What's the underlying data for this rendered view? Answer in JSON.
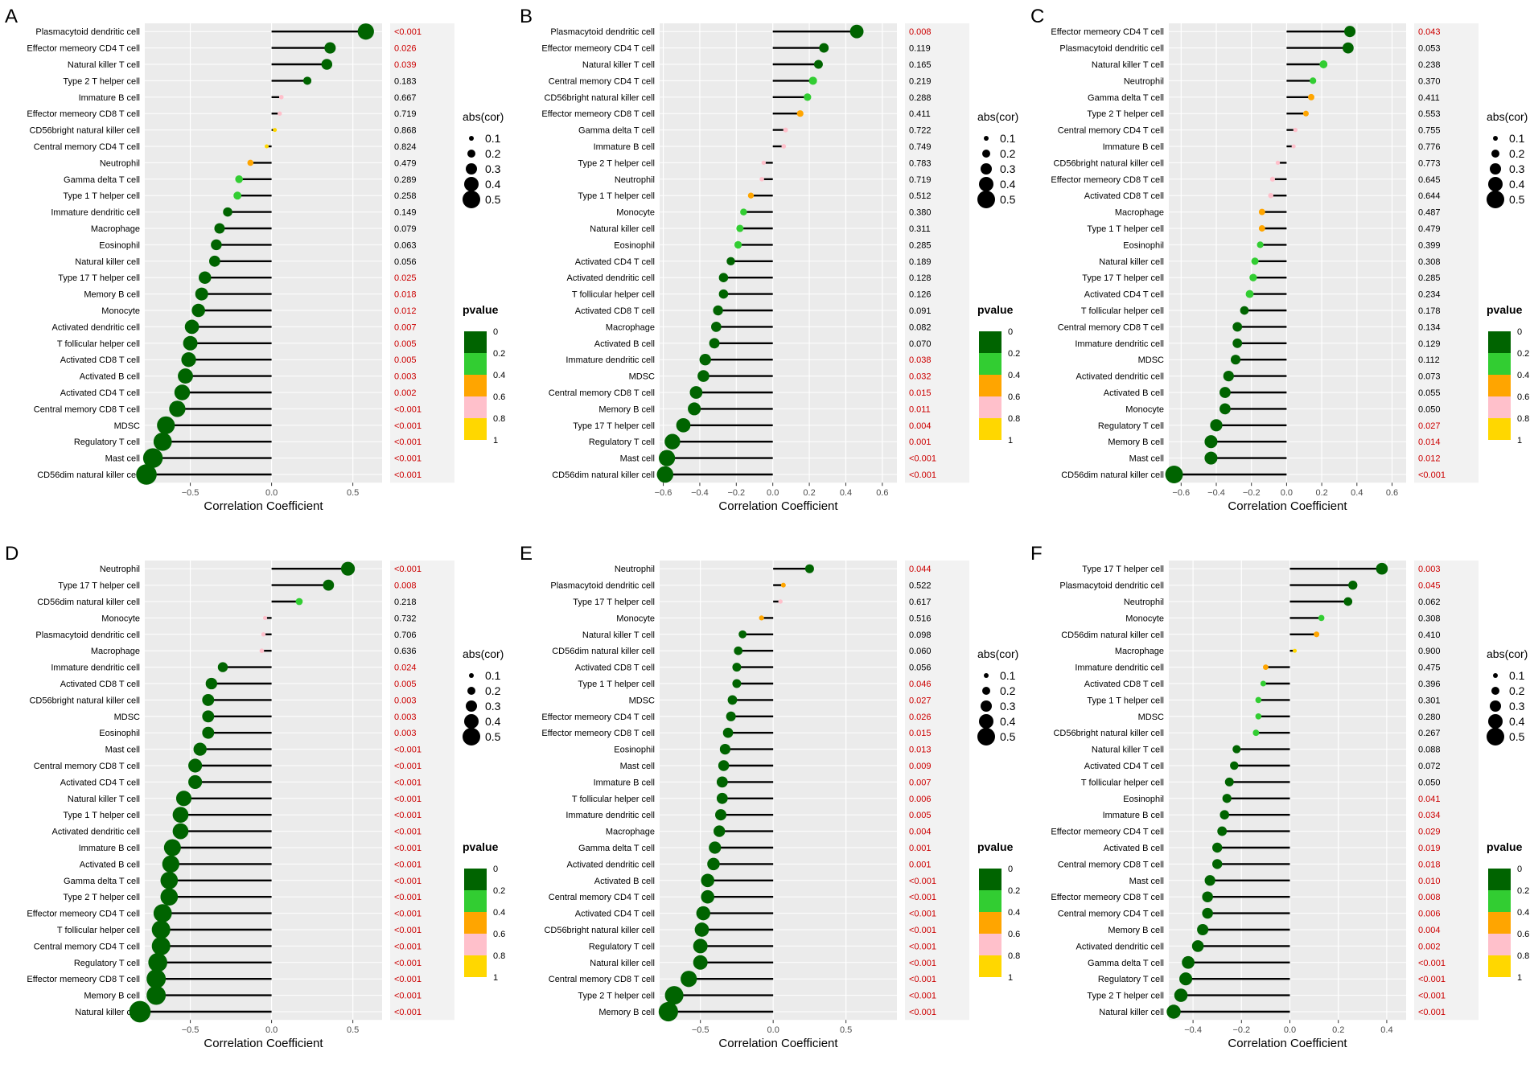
{
  "figure": {
    "xlabel": "Correlation Coefficient",
    "size_legend": {
      "title": "abs(cor)",
      "levels": [
        "0.1",
        "0.2",
        "0.3",
        "0.4",
        "0.5"
      ]
    },
    "p_legend": {
      "title": "pvalue",
      "ticks": [
        "0",
        "0.2",
        "0.4",
        "0.6",
        "0.8",
        "1"
      ]
    },
    "colors": {
      "p0_02": "#006400",
      "p02_04": "#32CD32",
      "p04_06": "#FFA500",
      "p06_08": "#FFC0CB",
      "p08_1": "#FFD700",
      "sig_text": "#cc0000",
      "nonsig_text": "#000000",
      "stem": "#000000",
      "panel_bg": "#ebebeb"
    }
  },
  "chart_data": [
    {
      "panel": "A",
      "type": "lollipop",
      "xlim": [
        -0.78,
        0.68
      ],
      "ticks": [
        -0.5,
        0,
        0.5
      ],
      "tick_labels": [
        "−0.5",
        "0.0",
        "0.5"
      ],
      "cells": [
        "Plasmacytoid dendritic cell",
        "Effector memeory CD4 T cell",
        "Natural killer T cell",
        "Type 2 T helper cell",
        "Immature  B cell",
        "Effector memeory CD8 T cell",
        "CD56bright natural killer cell",
        "Central memory CD4 T cell",
        "Neutrophil",
        "Gamma delta T cell",
        "Type 1 T helper cell",
        "Immature dendritic cell",
        "Macrophage",
        "Eosinophil",
        "Natural killer cell",
        "Type 17 T helper cell",
        "Memory B cell",
        "Monocyte",
        "Activated dendritic cell",
        "T follicular helper cell",
        "Activated CD8 T cell",
        "Activated B cell",
        "Activated CD4 T cell",
        "Central memory CD8 T cell",
        "MDSC",
        "Regulatory T cell",
        "Mast cell",
        "CD56dim natural killer cell"
      ],
      "cor": [
        0.58,
        0.36,
        0.34,
        0.22,
        0.06,
        0.05,
        0.02,
        -0.03,
        -0.13,
        -0.2,
        -0.21,
        -0.27,
        -0.32,
        -0.34,
        -0.35,
        -0.41,
        -0.43,
        -0.45,
        -0.49,
        -0.5,
        -0.51,
        -0.53,
        -0.55,
        -0.58,
        -0.65,
        -0.67,
        -0.73,
        -0.77
      ],
      "pvalue": [
        "<0.001",
        "0.026",
        "0.039",
        "0.183",
        "0.667",
        "0.719",
        "0.868",
        "0.824",
        "0.479",
        "0.289",
        "0.258",
        "0.149",
        "0.079",
        "0.063",
        "0.056",
        "0.025",
        "0.018",
        "0.012",
        "0.007",
        "0.005",
        "0.005",
        "0.003",
        "0.002",
        "<0.001",
        "<0.001",
        "<0.001",
        "<0.001",
        "<0.001"
      ]
    },
    {
      "panel": "B",
      "type": "lollipop",
      "xlim": [
        -0.62,
        0.68
      ],
      "ticks": [
        -0.6,
        -0.4,
        -0.2,
        0,
        0.2,
        0.4,
        0.6
      ],
      "tick_labels": [
        "−0.6",
        "−0.4",
        "−0.2",
        "0.0",
        "0.2",
        "0.4",
        "0.6"
      ],
      "cells": [
        "Plasmacytoid dendritic cell",
        "Effector memeory CD4 T cell",
        "Natural killer T cell",
        "Central memory CD4 T cell",
        "CD56bright natural killer cell",
        "Effector memeory CD8 T cell",
        "Gamma delta T cell",
        "Immature  B cell",
        "Type 2 T helper cell",
        "Neutrophil",
        "Type 1 T helper cell",
        "Monocyte",
        "Natural killer cell",
        "Eosinophil",
        "Activated CD4 T cell",
        "Activated dendritic cell",
        "T follicular helper cell",
        "Activated CD8 T cell",
        "Macrophage",
        "Activated B cell",
        "Immature dendritic cell",
        "MDSC",
        "Central memory CD8 T cell",
        "Memory B cell",
        "Type 17 T helper cell",
        "Regulatory T cell",
        "Mast cell",
        "CD56dim natural killer cell"
      ],
      "cor": [
        0.46,
        0.28,
        0.25,
        0.22,
        0.19,
        0.15,
        0.07,
        0.06,
        -0.05,
        -0.06,
        -0.12,
        -0.16,
        -0.18,
        -0.19,
        -0.23,
        -0.27,
        -0.27,
        -0.3,
        -0.31,
        -0.32,
        -0.37,
        -0.38,
        -0.42,
        -0.43,
        -0.49,
        -0.55,
        -0.58,
        -0.59
      ],
      "pvalue": [
        "0.008",
        "0.119",
        "0.165",
        "0.219",
        "0.288",
        "0.411",
        "0.722",
        "0.749",
        "0.783",
        "0.719",
        "0.512",
        "0.380",
        "0.311",
        "0.285",
        "0.189",
        "0.128",
        "0.126",
        "0.091",
        "0.082",
        "0.070",
        "0.038",
        "0.032",
        "0.015",
        "0.011",
        "0.004",
        "0.001",
        "<0.001",
        "<0.001"
      ]
    },
    {
      "panel": "C",
      "type": "lollipop",
      "xlim": [
        -0.67,
        0.68
      ],
      "ticks": [
        -0.6,
        -0.4,
        -0.2,
        0,
        0.2,
        0.4,
        0.6
      ],
      "tick_labels": [
        "−0.6",
        "−0.4",
        "−0.2",
        "0.0",
        "0.2",
        "0.4",
        "0.6"
      ],
      "cells": [
        "Effector memeory CD4 T cell",
        "Plasmacytoid dendritic cell",
        "Natural killer T cell",
        "Neutrophil",
        "Gamma delta T cell",
        "Type 2 T helper cell",
        "Central memory CD4 T cell",
        "Immature  B cell",
        "CD56bright natural killer cell",
        "Effector memeory CD8 T cell",
        "Activated CD8 T cell",
        "Macrophage",
        "Type 1 T helper cell",
        "Eosinophil",
        "Natural killer cell",
        "Type 17 T helper cell",
        "Activated CD4 T cell",
        "T follicular helper cell",
        "Central memory CD8 T cell",
        "Immature dendritic cell",
        "MDSC",
        "Activated dendritic cell",
        "Activated B cell",
        "Monocyte",
        "Regulatory T cell",
        "Memory B cell",
        "Mast cell",
        "CD56dim natural killer cell"
      ],
      "cor": [
        0.36,
        0.35,
        0.21,
        0.15,
        0.14,
        0.11,
        0.05,
        0.04,
        -0.05,
        -0.08,
        -0.09,
        -0.14,
        -0.14,
        -0.15,
        -0.18,
        -0.19,
        -0.21,
        -0.24,
        -0.28,
        -0.28,
        -0.29,
        -0.33,
        -0.35,
        -0.35,
        -0.4,
        -0.43,
        -0.43,
        -0.64
      ],
      "pvalue": [
        "0.043",
        "0.053",
        "0.238",
        "0.370",
        "0.411",
        "0.553",
        "0.755",
        "0.776",
        "0.773",
        "0.645",
        "0.644",
        "0.487",
        "0.479",
        "0.399",
        "0.308",
        "0.285",
        "0.234",
        "0.178",
        "0.134",
        "0.129",
        "0.112",
        "0.073",
        "0.055",
        "0.050",
        "0.027",
        "0.014",
        "0.012",
        "<0.001"
      ]
    },
    {
      "panel": "D",
      "type": "lollipop",
      "xlim": [
        -0.78,
        0.68
      ],
      "ticks": [
        -0.5,
        0,
        0.5
      ],
      "tick_labels": [
        "−0.5",
        "0.0",
        "0.5"
      ],
      "cells": [
        "Neutrophil",
        "Type 17 T helper cell",
        "CD56dim natural killer cell",
        "Monocyte",
        "Plasmacytoid dendritic cell",
        "Macrophage",
        "Immature dendritic cell",
        "Activated CD8 T cell",
        "CD56bright natural killer cell",
        "MDSC",
        "Eosinophil",
        "Mast cell",
        "Central memory CD8 T cell",
        "Activated CD4 T cell",
        "Natural killer T cell",
        "Type 1 T helper cell",
        "Activated dendritic cell",
        "Immature  B cell",
        "Activated B cell",
        "Gamma delta T cell",
        "Type 2 T helper cell",
        "Effector memeory CD4 T cell",
        "T follicular helper cell",
        "Central memory CD4 T cell",
        "Regulatory T cell",
        "Effector memeory CD8 T cell",
        "Memory B cell",
        "Natural killer cell"
      ],
      "cor": [
        0.47,
        0.35,
        0.17,
        -0.04,
        -0.05,
        -0.06,
        -0.3,
        -0.37,
        -0.39,
        -0.39,
        -0.39,
        -0.44,
        -0.47,
        -0.47,
        -0.54,
        -0.56,
        -0.56,
        -0.61,
        -0.62,
        -0.63,
        -0.63,
        -0.67,
        -0.68,
        -0.68,
        -0.7,
        -0.71,
        -0.71,
        -0.81
      ],
      "pvalue": [
        "<0.001",
        "0.008",
        "0.218",
        "0.732",
        "0.706",
        "0.636",
        "0.024",
        "0.005",
        "0.003",
        "0.003",
        "0.003",
        "<0.001",
        "<0.001",
        "<0.001",
        "<0.001",
        "<0.001",
        "<0.001",
        "<0.001",
        "<0.001",
        "<0.001",
        "<0.001",
        "<0.001",
        "<0.001",
        "<0.001",
        "<0.001",
        "<0.001",
        "<0.001",
        "<0.001"
      ]
    },
    {
      "panel": "E",
      "type": "lollipop",
      "xlim": [
        -0.78,
        0.85
      ],
      "ticks": [
        -0.5,
        0,
        0.5
      ],
      "tick_labels": [
        "−0.5",
        "0.0",
        "0.5"
      ],
      "cells": [
        "Neutrophil",
        "Plasmacytoid dendritic cell",
        "Type 17 T helper cell",
        "Monocyte",
        "Natural killer T cell",
        "CD56dim natural killer cell",
        "Activated CD8 T cell",
        "Type 1 T helper cell",
        "MDSC",
        "Effector memeory CD4 T cell",
        "Effector memeory CD8 T cell",
        "Eosinophil",
        "Mast cell",
        "Immature  B cell",
        "T follicular helper cell",
        "Immature dendritic cell",
        "Macrophage",
        "Gamma delta T cell",
        "Activated dendritic cell",
        "Activated B cell",
        "Central memory CD4 T cell",
        "Activated CD4 T cell",
        "CD56bright natural killer cell",
        "Regulatory T cell",
        "Natural killer cell",
        "Central memory CD8 T cell",
        "Type 2 T helper cell",
        "Memory B cell"
      ],
      "cor": [
        0.25,
        0.07,
        0.05,
        -0.08,
        -0.21,
        -0.24,
        -0.25,
        -0.25,
        -0.28,
        -0.29,
        -0.31,
        -0.33,
        -0.34,
        -0.35,
        -0.35,
        -0.36,
        -0.37,
        -0.4,
        -0.41,
        -0.45,
        -0.45,
        -0.48,
        -0.49,
        -0.5,
        -0.5,
        -0.58,
        -0.68,
        -0.72
      ],
      "pvalue": [
        "0.044",
        "0.522",
        "0.617",
        "0.516",
        "0.098",
        "0.060",
        "0.056",
        "0.046",
        "0.027",
        "0.026",
        "0.015",
        "0.013",
        "0.009",
        "0.007",
        "0.006",
        "0.005",
        "0.004",
        "0.001",
        "0.001",
        "<0.001",
        "<0.001",
        "<0.001",
        "<0.001",
        "<0.001",
        "<0.001",
        "<0.001",
        "<0.001",
        "<0.001"
      ]
    },
    {
      "panel": "F",
      "type": "lollipop",
      "xlim": [
        -0.5,
        0.48
      ],
      "ticks": [
        -0.4,
        -0.2,
        0,
        0.2,
        0.4
      ],
      "tick_labels": [
        "−0.4",
        "−0.2",
        "0.0",
        "0.2",
        "0.4"
      ],
      "cells": [
        "Type 17 T helper cell",
        "Plasmacytoid dendritic cell",
        "Neutrophil",
        "Monocyte",
        "CD56dim natural killer cell",
        "Macrophage",
        "Immature dendritic cell",
        "Activated CD8 T cell",
        "Type 1 T helper cell",
        "MDSC",
        "CD56bright natural killer cell",
        "Natural killer T cell",
        "Activated CD4 T cell",
        "T follicular helper cell",
        "Eosinophil",
        "Immature  B cell",
        "Effector memeory CD4 T cell",
        "Activated B cell",
        "Central memory CD8 T cell",
        "Mast cell",
        "Effector memeory CD8 T cell",
        "Central memory CD4 T cell",
        "Memory B cell",
        "Activated dendritic cell",
        "Gamma delta T cell",
        "Regulatory T cell",
        "Type 2 T helper cell",
        "Natural killer cell"
      ],
      "cor": [
        0.38,
        0.26,
        0.24,
        0.13,
        0.11,
        0.02,
        -0.1,
        -0.11,
        -0.13,
        -0.13,
        -0.14,
        -0.22,
        -0.23,
        -0.25,
        -0.26,
        -0.27,
        -0.28,
        -0.3,
        -0.3,
        -0.33,
        -0.34,
        -0.34,
        -0.36,
        -0.38,
        -0.42,
        -0.43,
        -0.45,
        -0.48
      ],
      "pvalue": [
        "0.003",
        "0.045",
        "0.062",
        "0.308",
        "0.410",
        "0.900",
        "0.475",
        "0.396",
        "0.301",
        "0.280",
        "0.267",
        "0.088",
        "0.072",
        "0.050",
        "0.041",
        "0.034",
        "0.029",
        "0.019",
        "0.018",
        "0.010",
        "0.008",
        "0.006",
        "0.004",
        "0.002",
        "<0.001",
        "<0.001",
        "<0.001",
        "<0.001"
      ]
    }
  ]
}
